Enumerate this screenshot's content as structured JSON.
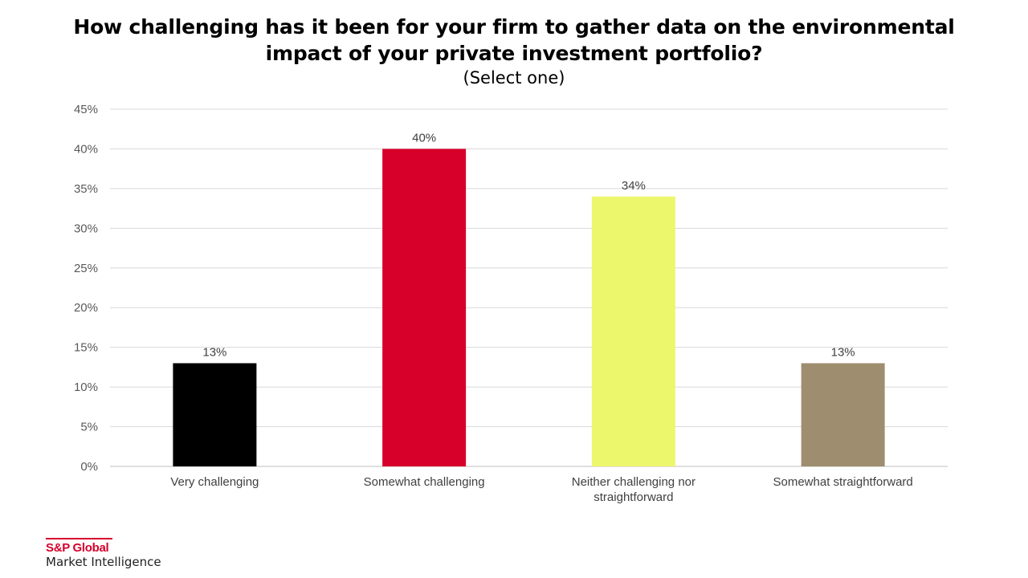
{
  "chart_data": {
    "type": "bar",
    "title": "How challenging has it been for your firm to gather data on the environmental impact of your private investment portfolio?",
    "subtitle": "(Select one)",
    "xlabel": "",
    "ylabel": "",
    "categories": [
      "Very challenging",
      "Somewhat challenging",
      "Neither challenging nor straightforward",
      "Somewhat straightforward"
    ],
    "category_label_lines": [
      [
        "Very challenging"
      ],
      [
        "Somewhat challenging"
      ],
      [
        "Neither challenging nor",
        "straightforward"
      ],
      [
        "Somewhat straightforward"
      ]
    ],
    "values": [
      13,
      40,
      34,
      13
    ],
    "data_labels": [
      "13%",
      "40%",
      "34%",
      "13%"
    ],
    "colors": [
      "#000000",
      "#d6002a",
      "#ecf76c",
      "#9e8d6f"
    ],
    "ylim": [
      0,
      45
    ],
    "yticks": [
      0,
      5,
      10,
      15,
      20,
      25,
      30,
      35,
      40,
      45
    ],
    "ytick_labels": [
      "0%",
      "5%",
      "10%",
      "15%",
      "20%",
      "25%",
      "30%",
      "35%",
      "40%",
      "45%"
    ],
    "grid": true,
    "legend": "none"
  },
  "branding": {
    "name": "S&P Global",
    "unit": "Market Intelligence",
    "accent_color": "#d6002a"
  }
}
